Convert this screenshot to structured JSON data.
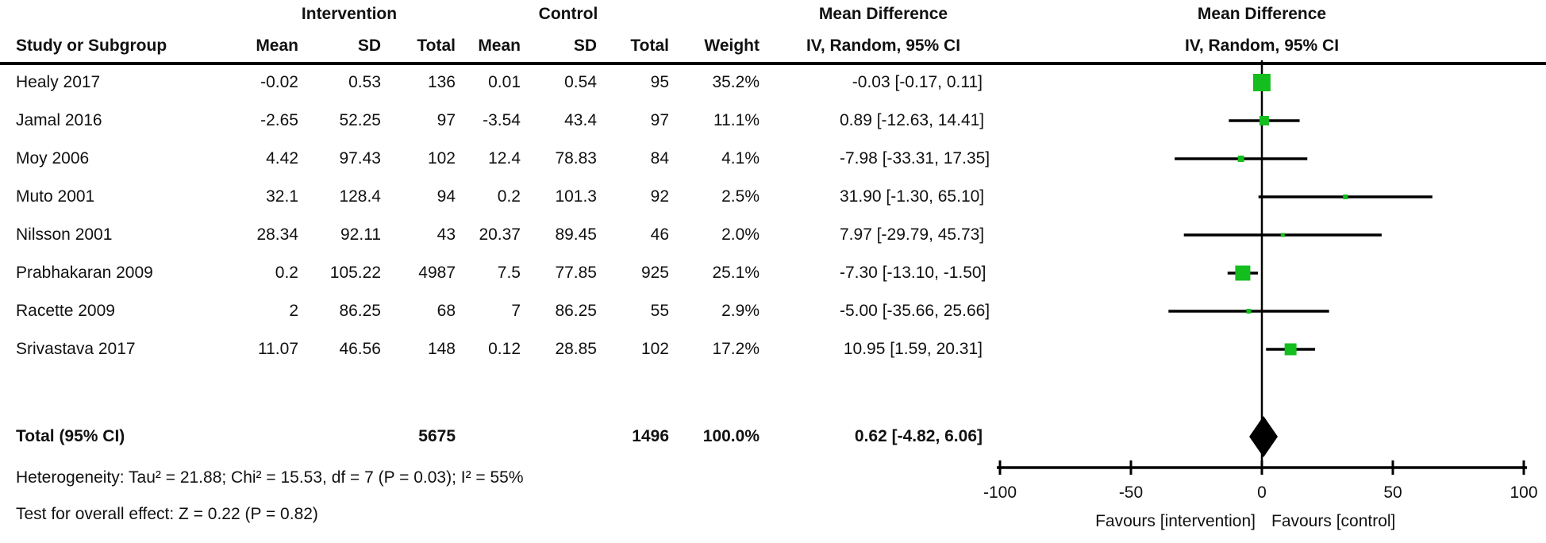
{
  "header": {
    "group_intervention": "Intervention",
    "group_control": "Control",
    "group_md_text": "Mean Difference",
    "group_md_plot": "Mean Difference",
    "col_study": "Study or Subgroup",
    "col_mean": "Mean",
    "col_sd": "SD",
    "col_total": "Total",
    "col_weight": "Weight",
    "col_ci": "IV, Random, 95% CI"
  },
  "footer": {
    "heterogeneity": "Heterogeneity: Tau² = 21.88; Chi² = 15.53, df = 7 (P = 0.03); I² = 55%",
    "overall_effect": "Test for overall effect: Z = 0.22 (P = 0.82)",
    "favours_left": "Favours [intervention]",
    "favours_right": "Favours [control]"
  },
  "colors": {
    "square_green": "#14be1e",
    "diamond_black": "#000000",
    "line_black": "#000000"
  },
  "chart_data": {
    "type": "forest",
    "effect_measure": "Mean Difference, IV, Random, 95% CI",
    "x_axis": {
      "min": -100,
      "max": 100,
      "ticks": [
        -100,
        -50,
        0,
        50,
        100
      ]
    },
    "studies": [
      {
        "study": "Healy 2017",
        "int_mean": "-0.02",
        "int_sd": "0.53",
        "int_total": "136",
        "ctl_mean": "0.01",
        "ctl_sd": "0.54",
        "ctl_total": "95",
        "weight": "35.2%",
        "weight_value": 35.2,
        "md": -0.03,
        "ci_low": -0.17,
        "ci_high": 0.11,
        "ci_label": "-0.03 [-0.17, 0.11]"
      },
      {
        "study": "Jamal 2016",
        "int_mean": "-2.65",
        "int_sd": "52.25",
        "int_total": "97",
        "ctl_mean": "-3.54",
        "ctl_sd": "43.4",
        "ctl_total": "97",
        "weight": "11.1%",
        "weight_value": 11.1,
        "md": 0.89,
        "ci_low": -12.63,
        "ci_high": 14.41,
        "ci_label": "0.89 [-12.63, 14.41]"
      },
      {
        "study": "Moy 2006",
        "int_mean": "4.42",
        "int_sd": "97.43",
        "int_total": "102",
        "ctl_mean": "12.4",
        "ctl_sd": "78.83",
        "ctl_total": "84",
        "weight": "4.1%",
        "weight_value": 4.1,
        "md": -7.98,
        "ci_low": -33.31,
        "ci_high": 17.35,
        "ci_label": "-7.98 [-33.31, 17.35]"
      },
      {
        "study": "Muto 2001",
        "int_mean": "32.1",
        "int_sd": "128.4",
        "int_total": "94",
        "ctl_mean": "0.2",
        "ctl_sd": "101.3",
        "ctl_total": "92",
        "weight": "2.5%",
        "weight_value": 2.5,
        "md": 31.9,
        "ci_low": -1.3,
        "ci_high": 65.1,
        "ci_label": "31.90 [-1.30, 65.10]"
      },
      {
        "study": "Nilsson 2001",
        "int_mean": "28.34",
        "int_sd": "92.11",
        "int_total": "43",
        "ctl_mean": "20.37",
        "ctl_sd": "89.45",
        "ctl_total": "46",
        "weight": "2.0%",
        "weight_value": 2.0,
        "md": 7.97,
        "ci_low": -29.79,
        "ci_high": 45.73,
        "ci_label": "7.97 [-29.79, 45.73]"
      },
      {
        "study": "Prabhakaran 2009",
        "int_mean": "0.2",
        "int_sd": "105.22",
        "int_total": "4987",
        "ctl_mean": "7.5",
        "ctl_sd": "77.85",
        "ctl_total": "925",
        "weight": "25.1%",
        "weight_value": 25.1,
        "md": -7.3,
        "ci_low": -13.1,
        "ci_high": -1.5,
        "ci_label": "-7.30 [-13.10, -1.50]"
      },
      {
        "study": "Racette 2009",
        "int_mean": "2",
        "int_sd": "86.25",
        "int_total": "68",
        "ctl_mean": "7",
        "ctl_sd": "86.25",
        "ctl_total": "55",
        "weight": "2.9%",
        "weight_value": 2.9,
        "md": -5.0,
        "ci_low": -35.66,
        "ci_high": 25.66,
        "ci_label": "-5.00 [-35.66, 25.66]"
      },
      {
        "study": "Srivastava 2017",
        "int_mean": "11.07",
        "int_sd": "46.56",
        "int_total": "148",
        "ctl_mean": "0.12",
        "ctl_sd": "28.85",
        "ctl_total": "102",
        "weight": "17.2%",
        "weight_value": 17.2,
        "md": 10.95,
        "ci_low": 1.59,
        "ci_high": 20.31,
        "ci_label": "10.95 [1.59, 20.31]"
      }
    ],
    "total": {
      "label": "Total (95% CI)",
      "int_total": "5675",
      "ctl_total": "1496",
      "weight": "100.0%",
      "md": 0.62,
      "ci_low": -4.82,
      "ci_high": 6.06,
      "ci_label": "0.62 [-4.82, 6.06]"
    }
  }
}
